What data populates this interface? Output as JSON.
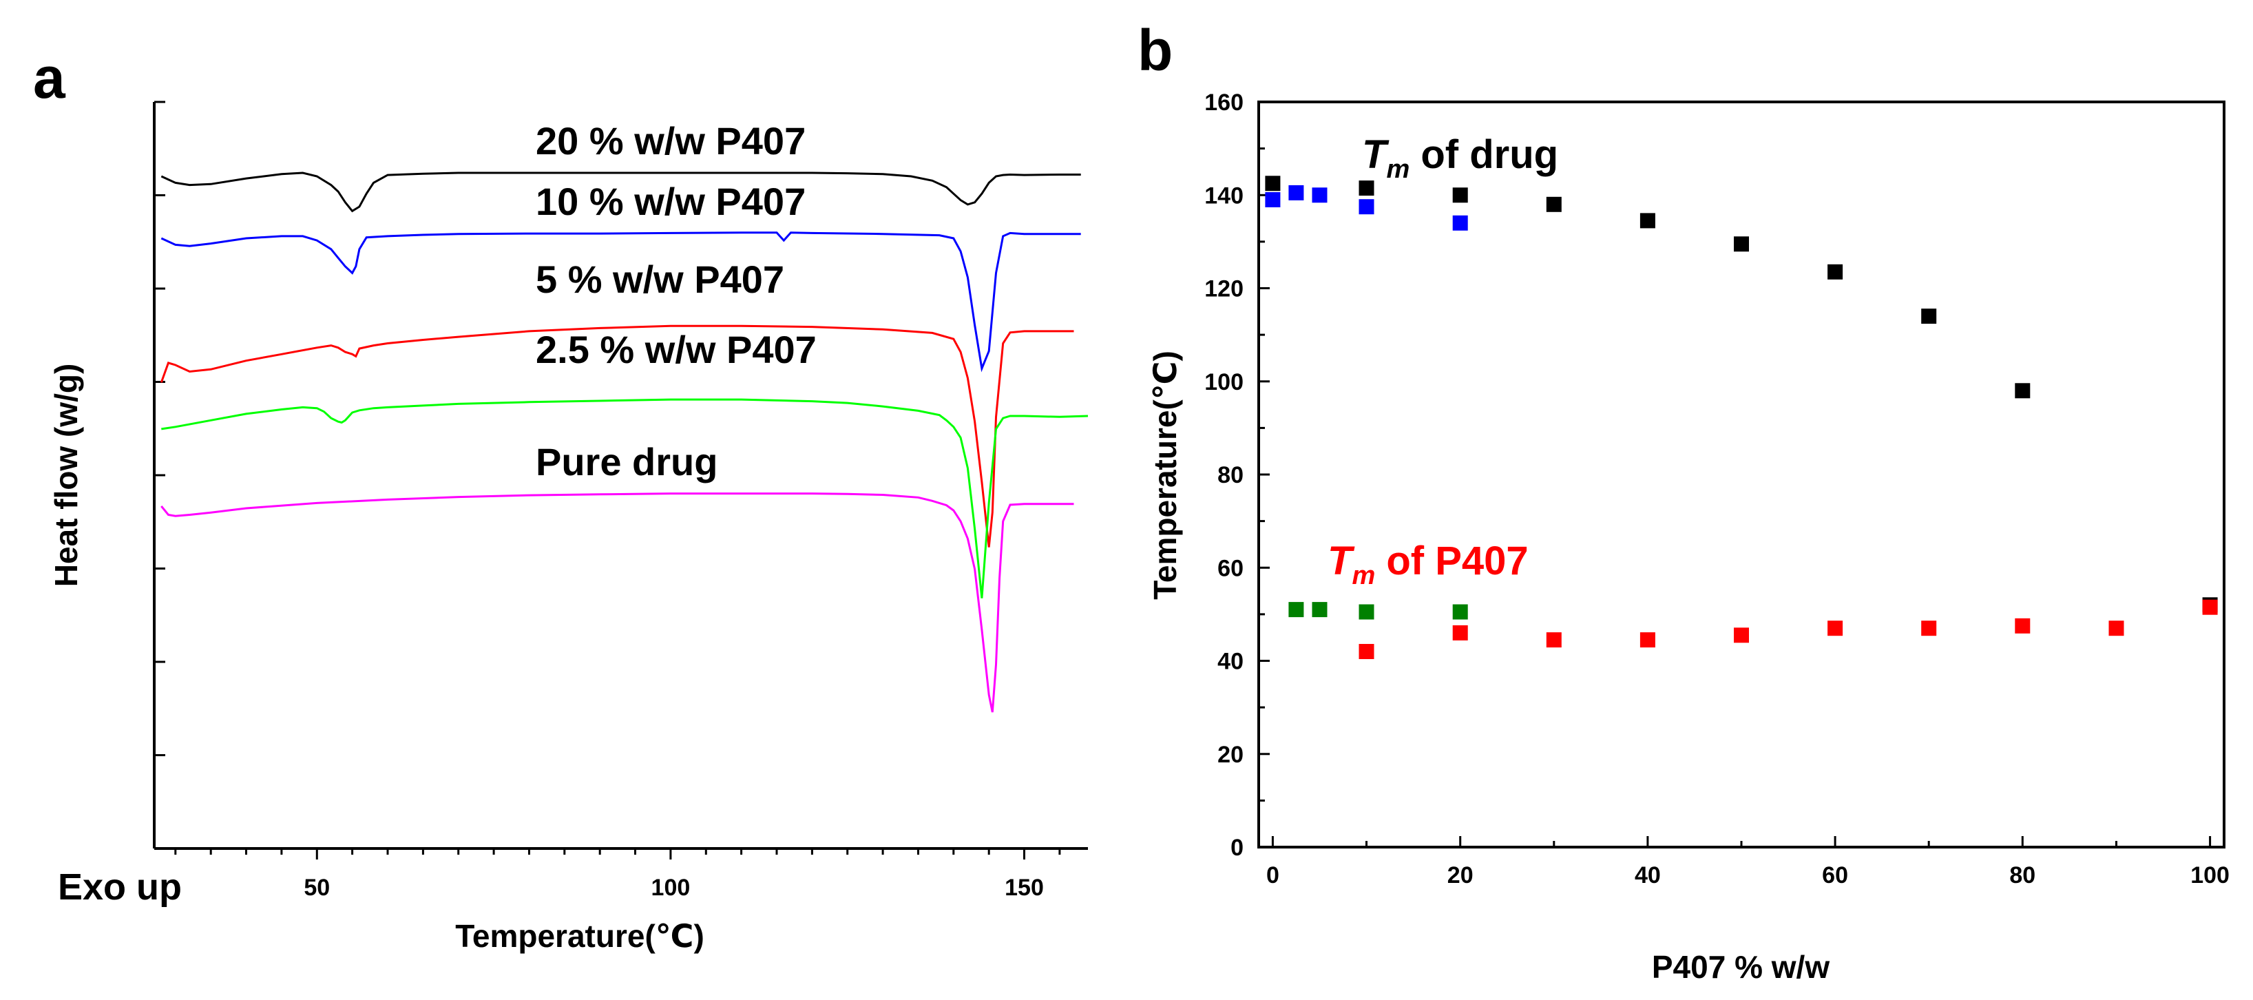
{
  "chart_data": [
    {
      "panel_label": "a",
      "type": "line",
      "title": "",
      "xlabel": "Temperature(℃)",
      "ylabel": "Heat flow (w/g)",
      "corner_label": "Exo up",
      "xlim": [
        27,
        159
      ],
      "xticks": [
        50,
        100,
        150
      ],
      "y_tick_labels_shown": false,
      "series": [
        {
          "name": "20 % w/w P407",
          "color": "#000000",
          "offset": 0,
          "x": [
            28,
            30,
            32,
            35,
            40,
            45,
            48,
            50,
            52,
            53,
            54,
            55,
            56,
            57,
            58,
            60,
            65,
            70,
            80,
            90,
            100,
            110,
            120,
            125,
            130,
            134,
            137,
            139,
            140,
            141,
            142,
            143,
            144,
            145,
            146,
            147,
            148,
            150,
            155,
            158
          ],
          "y": [
            0,
            -1.5,
            -2,
            -1.8,
            -0.5,
            0.5,
            0.8,
            0,
            -2,
            -3.5,
            -6,
            -8,
            -7,
            -4,
            -1.5,
            0.3,
            0.6,
            0.8,
            0.8,
            0.8,
            0.8,
            0.8,
            0.8,
            0.7,
            0.5,
            0,
            -1,
            -2.5,
            -4,
            -5.5,
            -6.5,
            -6,
            -4,
            -1.5,
            0,
            0.3,
            0.4,
            0.3,
            0.4,
            0.4
          ]
        },
        {
          "name": "10 % w/w P407",
          "color": "#0000ff",
          "offset": 0,
          "x": [
            28,
            30,
            32,
            35,
            40,
            45,
            48,
            50,
            52,
            53,
            54,
            55,
            55.5,
            56,
            57,
            60,
            65,
            70,
            80,
            90,
            100,
            110,
            115,
            116,
            117,
            120,
            130,
            138,
            140,
            141,
            142,
            143,
            144,
            145,
            146,
            147,
            148,
            150,
            155,
            158
          ],
          "y": [
            0,
            -1.5,
            -1.8,
            -1.2,
            0,
            0.5,
            0.5,
            -0.5,
            -2.5,
            -4.5,
            -6.5,
            -8,
            -6.5,
            -2.5,
            0.2,
            0.5,
            0.8,
            1,
            1.1,
            1.1,
            1.2,
            1.3,
            1.3,
            -0.5,
            1.3,
            1.2,
            1,
            0.7,
            0,
            -3,
            -9,
            -20,
            -30,
            -26,
            -8,
            0.5,
            1.2,
            1,
            1,
            1
          ]
        },
        {
          "name": "5 % w/w P407",
          "color": "#ff0000",
          "offset": 0,
          "x": [
            28,
            29,
            30,
            32,
            35,
            40,
            45,
            50,
            52,
            53,
            54,
            55,
            55.5,
            56,
            58,
            60,
            65,
            70,
            80,
            90,
            100,
            110,
            120,
            130,
            137,
            140,
            141,
            142,
            143,
            144,
            145,
            145.5,
            146,
            147,
            148,
            150,
            155,
            157
          ],
          "y": [
            -4,
            0.5,
            0,
            -1.5,
            -1,
            1,
            2.5,
            4,
            4.5,
            4,
            3,
            2.5,
            2,
            3.8,
            4.5,
            5,
            5.8,
            6.5,
            7.8,
            8.5,
            9,
            9,
            8.8,
            8.2,
            7.4,
            6,
            3,
            -3,
            -13,
            -27,
            -42,
            -34,
            -12,
            5,
            7.5,
            7.8,
            7.8,
            7.8
          ]
        },
        {
          "name": "2.5 % w/w P407",
          "color": "#00ff00",
          "offset": 0,
          "x": [
            28,
            30,
            35,
            40,
            45,
            48,
            50,
            51,
            52,
            53,
            53.5,
            54,
            55,
            56,
            58,
            60,
            65,
            70,
            80,
            90,
            100,
            110,
            120,
            125,
            130,
            135,
            138,
            139,
            140,
            141,
            142,
            143,
            144,
            145,
            146,
            147,
            148,
            150,
            155,
            159
          ],
          "y": [
            -3,
            -2.5,
            -1,
            0.5,
            1.5,
            2,
            1.8,
            1,
            -0.5,
            -1.3,
            -1.5,
            -1,
            0.8,
            1.3,
            1.8,
            2,
            2.4,
            2.8,
            3.2,
            3.5,
            3.8,
            3.8,
            3.4,
            3,
            2.2,
            1.2,
            0.2,
            -1,
            -2.5,
            -5,
            -12,
            -26,
            -42,
            -20,
            -3,
            -0.5,
            0,
            0,
            -0.2,
            0
          ]
        },
        {
          "name": "Pure drug",
          "color": "#ff00ff",
          "offset": 0,
          "x": [
            28,
            29,
            30,
            32,
            35,
            40,
            50,
            60,
            70,
            80,
            90,
            100,
            110,
            120,
            125,
            130,
            135,
            137,
            139,
            140,
            141,
            142,
            143,
            144,
            145,
            145.5,
            146,
            146.5,
            147,
            148,
            150,
            155,
            157
          ],
          "y": [
            0.5,
            -1.5,
            -1.8,
            -1.5,
            -1,
            0,
            1.2,
            2,
            2.6,
            3,
            3.2,
            3.4,
            3.4,
            3.4,
            3.3,
            3.1,
            2.5,
            1.7,
            0.7,
            -0.5,
            -3,
            -7,
            -14,
            -28,
            -43,
            -47,
            -36,
            -16,
            -3,
            0.8,
            1,
            1,
            1
          ]
        }
      ]
    },
    {
      "panel_label": "b",
      "type": "scatter",
      "title": "",
      "xlabel": "P407  % w/w",
      "ylabel": "Temperature(℃)",
      "xlim": [
        -1.5,
        101.5
      ],
      "ylim": [
        0,
        160
      ],
      "xticks": [
        "0",
        "20",
        "40",
        "60",
        "80",
        "100"
      ],
      "yticks": [
        "0",
        "20",
        "40",
        "60",
        "80",
        "100",
        "120",
        "140",
        "160"
      ],
      "annotations": [
        {
          "pre": "T",
          "sub": "m",
          "post": " of drug",
          "color": "#000000"
        },
        {
          "pre": "T",
          "sub": "m",
          "post": " of P407",
          "color": "#ff0000"
        }
      ],
      "series": [
        {
          "name": "Tm of drug",
          "color": "#000000",
          "x": [
            0,
            10,
            20,
            30,
            40,
            50,
            60,
            70,
            80,
            100
          ],
          "y": [
            142.5,
            141.5,
            140,
            138,
            134.5,
            129.5,
            123.5,
            114,
            98,
            52
          ]
        },
        {
          "name": "Tm of drug (blue)",
          "color": "#0000ff",
          "x": [
            0,
            2.5,
            5,
            10,
            20
          ],
          "y": [
            139,
            140.5,
            140,
            137.5,
            134
          ]
        },
        {
          "name": "Tm of P407",
          "color": "#ff0000",
          "x": [
            10,
            20,
            30,
            40,
            50,
            60,
            70,
            80,
            90,
            100
          ],
          "y": [
            42,
            46,
            44.5,
            44.5,
            45.5,
            47,
            47,
            47.5,
            47,
            51.5
          ]
        },
        {
          "name": "Tm of P407 (green)",
          "color": "#008000",
          "x": [
            2.5,
            5,
            10,
            20
          ],
          "y": [
            51,
            51,
            50.5,
            50.5
          ]
        }
      ]
    }
  ]
}
